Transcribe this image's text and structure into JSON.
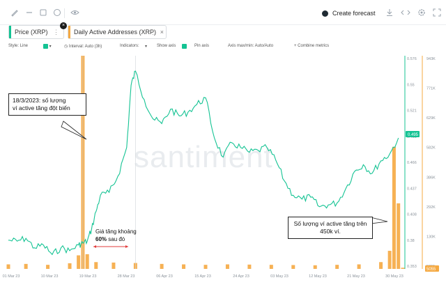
{
  "toolbar": {
    "icons": [
      "pencil-icon",
      "minus-icon",
      "sticky-note-icon",
      "emoji-icon",
      "eye-icon"
    ],
    "create_forecast": "Create forecast",
    "right_icons": [
      "download-icon",
      "embed-code-icon",
      "settings-gear-icon",
      "expand-icon"
    ]
  },
  "tabs": [
    {
      "label": "Price (XRP)",
      "color": "#14c393"
    },
    {
      "label": "Daily Active Addresses (XRP)",
      "color": "#f5a941"
    }
  ],
  "settings": {
    "style": "Style: Line",
    "interval": "Interval: Auto (3h)",
    "indicators": "Indicators:",
    "show_axis": "Show axis",
    "pin_axis": "Pin axis",
    "axis_max_min": "Axis max/min: Auto/Auto",
    "combine": "+ Combine metrics"
  },
  "watermark": "santiment",
  "annotations": {
    "spike": "18/3/2023: số lượng\nví active tăng đột biến",
    "price_gain_1": "Giá tăng khoảng",
    "price_gain_bold": "60%",
    "price_gain_2": " sau đó",
    "active_450k": "Số lượng ví active tăng trên\n450k ví."
  },
  "colors": {
    "price": "#14c393",
    "active": "#f5a941",
    "arrow": "#e23b3b"
  },
  "chart_data": {
    "type": "line",
    "x_tick_labels": [
      "01 Mar 23",
      "10 Mar 23",
      "19 Mar 23",
      "28 Mar 23",
      "06 Apr 23",
      "15 Apr 23",
      "24 Apr 23",
      "03 May 23",
      "12 May 23",
      "21 May 23",
      "30 May 23"
    ],
    "price_axis_ticks": [
      "0.576",
      "0.55",
      "0.521",
      "0.493",
      "0.466",
      "0.437",
      "0.408",
      "0.38",
      "0.353"
    ],
    "active_axis_ticks": [
      "943K",
      "771K",
      "629K",
      "582K",
      "386K",
      "292K",
      "130K",
      "5055"
    ],
    "price_current_label": "0.495",
    "active_current_label": "5055",
    "price_ylim": [
      0.353,
      0.576
    ],
    "active_ylim": [
      0,
      943000
    ],
    "series": [
      {
        "name": "Price (XRP)",
        "dates": [
          "2023-03-01",
          "2023-03-03",
          "2023-03-05",
          "2023-03-07",
          "2023-03-09",
          "2023-03-11",
          "2023-03-13",
          "2023-03-15",
          "2023-03-17",
          "2023-03-18",
          "2023-03-19",
          "2023-03-20",
          "2023-03-21",
          "2023-03-22",
          "2023-03-24",
          "2023-03-26",
          "2023-03-28",
          "2023-03-29",
          "2023-03-30",
          "2023-04-01",
          "2023-04-03",
          "2023-04-05",
          "2023-04-07",
          "2023-04-09",
          "2023-04-11",
          "2023-04-13",
          "2023-04-15",
          "2023-04-17",
          "2023-04-19",
          "2023-04-21",
          "2023-04-23",
          "2023-04-25",
          "2023-04-27",
          "2023-04-29",
          "2023-05-01",
          "2023-05-03",
          "2023-05-05",
          "2023-05-07",
          "2023-05-09",
          "2023-05-11",
          "2023-05-13",
          "2023-05-15",
          "2023-05-17",
          "2023-05-19",
          "2023-05-21",
          "2023-05-23",
          "2023-05-25",
          "2023-05-27",
          "2023-05-29"
        ],
        "values": [
          0.383,
          0.382,
          0.385,
          0.375,
          0.378,
          0.368,
          0.375,
          0.372,
          0.378,
          0.38,
          0.382,
          0.395,
          0.413,
          0.43,
          0.433,
          0.45,
          0.48,
          0.545,
          0.56,
          0.53,
          0.51,
          0.505,
          0.52,
          0.513,
          0.517,
          0.525,
          0.532,
          0.49,
          0.47,
          0.485,
          0.48,
          0.475,
          0.477,
          0.48,
          0.467,
          0.445,
          0.43,
          0.426,
          0.428,
          0.418,
          0.42,
          0.422,
          0.437,
          0.455,
          0.462,
          0.453,
          0.466,
          0.473,
          0.49
        ]
      },
      {
        "name": "Daily Active Addresses (XRP)",
        "dates": [
          "2023-03-01",
          "2023-03-05",
          "2023-03-10",
          "2023-03-15",
          "2023-03-17",
          "2023-03-18",
          "2023-03-19",
          "2023-03-21",
          "2023-03-25",
          "2023-03-30",
          "2023-04-05",
          "2023-04-10",
          "2023-04-15",
          "2023-04-20",
          "2023-04-25",
          "2023-04-30",
          "2023-05-05",
          "2023-05-10",
          "2023-05-15",
          "2023-05-20",
          "2023-05-25",
          "2023-05-27",
          "2023-05-28",
          "2023-05-29",
          "2023-05-30"
        ],
        "values": [
          20000,
          22000,
          18000,
          25000,
          60000,
          943000,
          65000,
          30000,
          28000,
          26000,
          22000,
          20000,
          18000,
          20000,
          19000,
          18000,
          17000,
          16000,
          18000,
          20000,
          30000,
          80000,
          540000,
          290000,
          5055
        ]
      }
    ]
  }
}
